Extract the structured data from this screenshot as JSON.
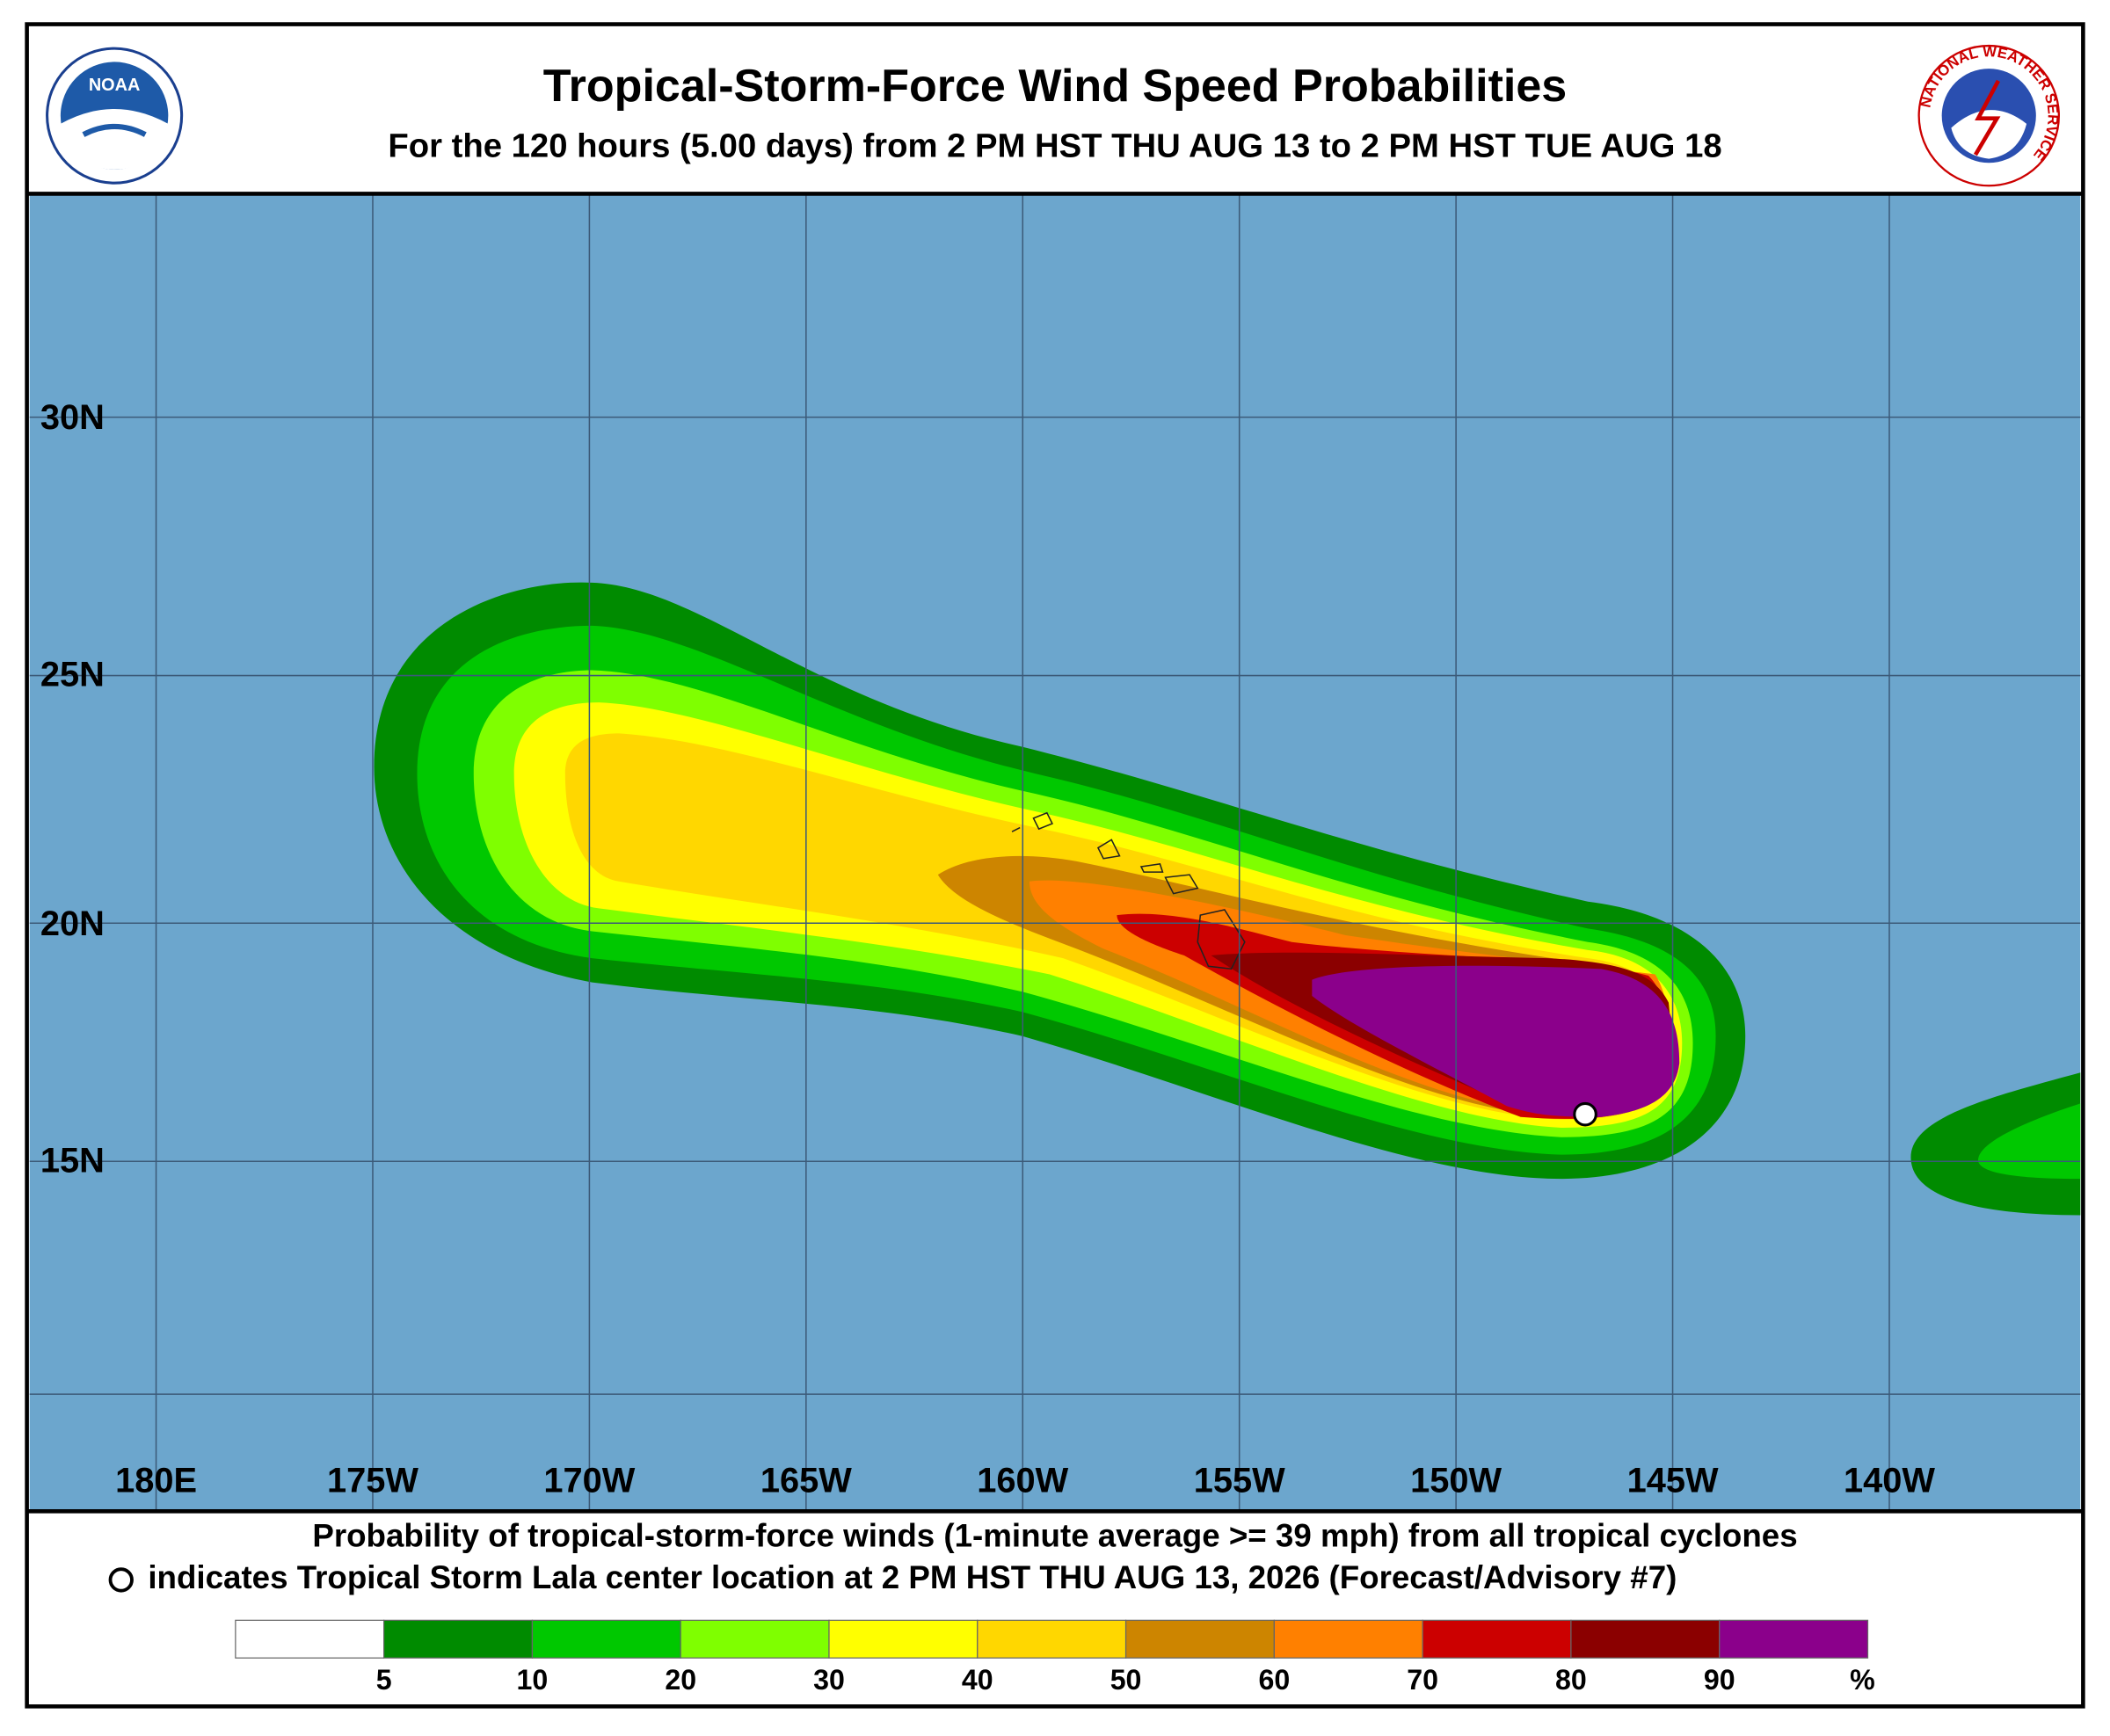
{
  "header": {
    "title": "Tropical-Storm-Force Wind Speed Probabilities",
    "subtitle": "For the 120 hours (5.00 days) from 2 PM HST THU AUG 13 to 2 PM HST TUE AUG 18",
    "left_logo": "NOAA",
    "right_logo": "NATIONAL WEATHER SERVICE"
  },
  "map": {
    "lat_labels": [
      "30N",
      "25N",
      "20N",
      "15N"
    ],
    "lon_labels": [
      "180E",
      "175W",
      "170W",
      "165W",
      "160W",
      "155W",
      "150W",
      "145W",
      "140W"
    ]
  },
  "footer": {
    "line1": "Probability of tropical-storm-force winds (1-minute average >= 39 mph) from all tropical cyclones",
    "line2": "indicates Tropical Storm Lala center location at 2 PM HST THU AUG 13, 2026 (Forecast/Advisory #7)"
  },
  "legend": {
    "colors": [
      "#ffffff",
      "#008b00",
      "#00c800",
      "#7fff00",
      "#ffff00",
      "#ffd700",
      "#cd8500",
      "#ff8000",
      "#cc0000",
      "#8b0000",
      "#8b008b"
    ],
    "labels": [
      "5",
      "10",
      "20",
      "30",
      "40",
      "50",
      "60",
      "70",
      "80",
      "90"
    ],
    "unit": "%"
  }
}
